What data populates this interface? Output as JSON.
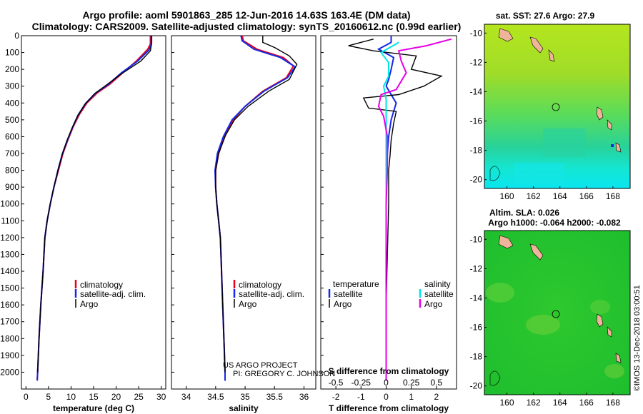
{
  "header": {
    "line1": "Argo profile: aoml 5901863_285 12-Jun-2016 14.63S 163.4E (DM data)",
    "line2": "Climatology: CARS2009. Satellite-adjusted climatology: synTS_20160612.nc (0.99d earlier)"
  },
  "colors": {
    "climatology": "#e6001e",
    "satellite": "#1428e6",
    "argo": "#000000",
    "salinity_satellite": "#00e6e6",
    "salinity_argo": "#e600e6"
  },
  "chart_data": [
    {
      "type": "line",
      "panel": "temperature",
      "xlabel": "temperature (deg C)",
      "ylabel": "",
      "xlim": [
        -1,
        31
      ],
      "ylim": [
        2100,
        0
      ],
      "x_ticks": [
        "0",
        "5",
        "10",
        "15",
        "20",
        "25",
        "30"
      ],
      "y_ticks": [
        "0",
        "100",
        "200",
        "300",
        "400",
        "500",
        "600",
        "700",
        "800",
        "900",
        "1000",
        "1100",
        "1200",
        "1300",
        "1400",
        "1500",
        "1600",
        "1700",
        "1800",
        "1900",
        "2000"
      ],
      "legend": [
        "climatology",
        "satellite-adj. clim.",
        "Argo"
      ],
      "series": [
        {
          "name": "climatology",
          "color": "#e6001e",
          "points": [
            [
              27.6,
              0
            ],
            [
              27.6,
              50
            ],
            [
              27.0,
              80
            ],
            [
              24.5,
              150
            ],
            [
              21.5,
              220
            ],
            [
              18.5,
              290
            ],
            [
              15.8,
              340
            ],
            [
              13.5,
              400
            ],
            [
              11.8,
              470
            ],
            [
              10.5,
              540
            ],
            [
              9.3,
              620
            ],
            [
              8.2,
              700
            ],
            [
              7.2,
              800
            ],
            [
              6.2,
              900
            ],
            [
              5.4,
              1000
            ],
            [
              4.7,
              1100
            ],
            [
              4.2,
              1200
            ],
            [
              3.8,
              1400
            ],
            [
              3.3,
              1600
            ],
            [
              2.9,
              1800
            ],
            [
              2.6,
              2000
            ],
            [
              2.5,
              2050
            ]
          ]
        },
        {
          "name": "satellite-adj. clim.",
          "color": "#1428e6",
          "points": [
            [
              27.8,
              0
            ],
            [
              27.8,
              50
            ],
            [
              27.3,
              85
            ],
            [
              24.8,
              150
            ],
            [
              21.2,
              220
            ],
            [
              18.2,
              290
            ],
            [
              15.5,
              340
            ],
            [
              13.3,
              400
            ],
            [
              11.6,
              470
            ],
            [
              10.4,
              540
            ],
            [
              9.2,
              620
            ],
            [
              8.1,
              700
            ],
            [
              7.1,
              800
            ],
            [
              6.2,
              900
            ],
            [
              5.4,
              1000
            ],
            [
              4.7,
              1100
            ],
            [
              4.2,
              1200
            ],
            [
              3.8,
              1400
            ],
            [
              3.3,
              1600
            ],
            [
              2.9,
              1800
            ],
            [
              2.6,
              2000
            ],
            [
              2.5,
              2050
            ]
          ]
        },
        {
          "name": "Argo",
          "color": "#000000",
          "points": [
            [
              27.9,
              0
            ],
            [
              27.9,
              40
            ],
            [
              27.6,
              90
            ],
            [
              25.5,
              150
            ],
            [
              21.0,
              230
            ],
            [
              17.5,
              300
            ],
            [
              15.2,
              345
            ],
            [
              13.0,
              410
            ],
            [
              11.4,
              480
            ],
            [
              10.2,
              550
            ],
            [
              9.0,
              630
            ],
            [
              8.0,
              710
            ],
            [
              7.0,
              810
            ],
            [
              6.1,
              910
            ],
            [
              5.3,
              1010
            ],
            [
              4.7,
              1100
            ],
            [
              4.2,
              1200
            ],
            [
              3.8,
              1400
            ],
            [
              3.3,
              1600
            ],
            [
              2.9,
              1800
            ],
            [
              2.6,
              2000
            ]
          ]
        }
      ]
    },
    {
      "type": "line",
      "panel": "salinity",
      "xlabel": "salinity",
      "ylabel": "",
      "xlim": [
        33.75,
        36.2
      ],
      "ylim": [
        2100,
        0
      ],
      "x_ticks": [
        "34",
        "34.5",
        "35",
        "35.5",
        "36"
      ],
      "legend": [
        "climatology",
        "satellite-adj. clim.",
        "Argo"
      ],
      "series": [
        {
          "name": "climatology",
          "color": "#e6001e",
          "points": [
            [
              34.95,
              0
            ],
            [
              34.97,
              30
            ],
            [
              35.2,
              80
            ],
            [
              35.65,
              130
            ],
            [
              35.82,
              180
            ],
            [
              35.7,
              250
            ],
            [
              35.3,
              330
            ],
            [
              35.0,
              420
            ],
            [
              34.8,
              500
            ],
            [
              34.65,
              600
            ],
            [
              34.55,
              700
            ],
            [
              34.5,
              800
            ],
            [
              34.5,
              900
            ],
            [
              34.52,
              1000
            ],
            [
              34.55,
              1100
            ],
            [
              34.58,
              1200
            ],
            [
              34.6,
              1400
            ],
            [
              34.62,
              1600
            ],
            [
              34.64,
              1800
            ],
            [
              34.66,
              2000
            ],
            [
              34.66,
              2050
            ]
          ]
        },
        {
          "name": "satellite-adj. clim.",
          "color": "#1428e6",
          "points": [
            [
              34.93,
              0
            ],
            [
              34.95,
              30
            ],
            [
              35.15,
              80
            ],
            [
              35.6,
              130
            ],
            [
              35.85,
              185
            ],
            [
              35.72,
              250
            ],
            [
              35.32,
              330
            ],
            [
              35.0,
              420
            ],
            [
              34.78,
              500
            ],
            [
              34.63,
              600
            ],
            [
              34.53,
              700
            ],
            [
              34.49,
              800
            ],
            [
              34.5,
              900
            ],
            [
              34.52,
              1000
            ],
            [
              34.55,
              1100
            ],
            [
              34.58,
              1200
            ],
            [
              34.6,
              1400
            ],
            [
              34.62,
              1600
            ],
            [
              34.64,
              1800
            ],
            [
              34.66,
              2000
            ],
            [
              34.66,
              2050
            ]
          ]
        },
        {
          "name": "Argo",
          "color": "#000000",
          "points": [
            [
              35.3,
              0
            ],
            [
              35.3,
              40
            ],
            [
              35.5,
              70
            ],
            [
              35.75,
              120
            ],
            [
              35.88,
              170
            ],
            [
              35.75,
              260
            ],
            [
              35.4,
              330
            ],
            [
              35.05,
              420
            ],
            [
              34.82,
              500
            ],
            [
              34.67,
              590
            ],
            [
              34.55,
              700
            ],
            [
              34.5,
              800
            ],
            [
              34.5,
              900
            ],
            [
              34.52,
              1000
            ],
            [
              34.55,
              1100
            ],
            [
              34.58,
              1200
            ],
            [
              34.6,
              1400
            ],
            [
              34.62,
              1600
            ],
            [
              34.64,
              1800
            ],
            [
              34.66,
              2000
            ]
          ]
        }
      ]
    },
    {
      "type": "line",
      "panel": "difference",
      "xlabel": "T difference from climatology",
      "xlabel_top": "S difference from climatology",
      "ylabel": "",
      "xlim": [
        -2.6,
        2.8
      ],
      "ylim": [
        2100,
        0
      ],
      "x_ticks_T": [
        "-2",
        "-1",
        "0",
        "1",
        "2"
      ],
      "x_ticks_S": [
        "-0.5",
        "-0.25",
        "0",
        "0.25",
        "0.5"
      ],
      "legend_left_title": "temperature",
      "legend_right_title": "salinity",
      "legend": [
        "satellite",
        "Argo",
        "satellite",
        "Argo"
      ],
      "series": [
        {
          "name": "satellite",
          "color": "#1428e6",
          "points": [
            [
              0.2,
              0
            ],
            [
              0.2,
              40
            ],
            [
              -0.3,
              80
            ],
            [
              0.3,
              130
            ],
            [
              0.2,
              200
            ],
            [
              0.1,
              260
            ],
            [
              0.0,
              300
            ],
            [
              0.2,
              350
            ],
            [
              0.4,
              400
            ],
            [
              0.3,
              450
            ],
            [
              0.2,
              500
            ],
            [
              0.1,
              600
            ],
            [
              0.05,
              700
            ],
            [
              0.0,
              900
            ],
            [
              0.0,
              1200
            ],
            [
              0.0,
              1600
            ],
            [
              0.0,
              2050
            ]
          ]
        },
        {
          "name": "Argo",
          "color": "#000000",
          "points": [
            [
              -0.5,
              20
            ],
            [
              -1.5,
              60
            ],
            [
              -0.5,
              90
            ],
            [
              1.2,
              120
            ],
            [
              1.0,
              200
            ],
            [
              2.2,
              240
            ],
            [
              1.5,
              300
            ],
            [
              0.5,
              350
            ],
            [
              -0.9,
              370
            ],
            [
              -0.7,
              430
            ],
            [
              0.4,
              450
            ],
            [
              0.3,
              520
            ],
            [
              0.2,
              620
            ],
            [
              0.15,
              720
            ],
            [
              0.1,
              800
            ],
            [
              0.1,
              1000
            ],
            [
              0.05,
              1300
            ],
            [
              0.0,
              1600
            ],
            [
              0.0,
              1800
            ],
            [
              0.0,
              2000
            ]
          ]
        },
        {
          "name": "satellite",
          "color": "#00e6e6",
          "points": [
            [
              0.5,
              40
            ],
            [
              -0.2,
              100
            ],
            [
              0.1,
              160
            ],
            [
              0.1,
              240
            ],
            [
              -0.1,
              300
            ],
            [
              0.0,
              380
            ],
            [
              0.0,
              500
            ],
            [
              0.0,
              700
            ],
            [
              0.0,
              1000
            ],
            [
              0.0,
              1400
            ],
            [
              0.0,
              1800
            ],
            [
              0.0,
              2050
            ]
          ]
        },
        {
          "name": "Argo",
          "color": "#e600e6",
          "points": [
            [
              2.6,
              20
            ],
            [
              1.6,
              60
            ],
            [
              0.5,
              90
            ],
            [
              0.6,
              150
            ],
            [
              0.8,
              220
            ],
            [
              0.4,
              320
            ],
            [
              -0.2,
              350
            ],
            [
              -0.3,
              420
            ],
            [
              -0.1,
              480
            ],
            [
              0.05,
              600
            ],
            [
              0.05,
              800
            ],
            [
              0.0,
              1000
            ],
            [
              0.0,
              1400
            ],
            [
              0.0,
              1800
            ],
            [
              0.0,
              2050
            ]
          ]
        }
      ]
    }
  ],
  "annotations": {
    "project": "US ARGO PROJECT",
    "pi": "PI: GREGORY C. JOHNSON"
  },
  "maps": {
    "sst": {
      "title": "sat. SST: 27.6 Argo: 27.9",
      "x_ticks": [
        "160",
        "162",
        "164",
        "166",
        "168"
      ],
      "y_ticks": [
        "-10",
        "-12",
        "-14",
        "-16",
        "-18",
        "-20"
      ]
    },
    "sla": {
      "title1": "Altim. SLA: 0.026",
      "title2": "Argo h1000: -0.064 h2000: -0.082",
      "x_ticks": [
        "160",
        "162",
        "164",
        "166",
        "168"
      ],
      "y_ticks": [
        "-10",
        "-12",
        "-14",
        "-16",
        "-18",
        "-20"
      ]
    },
    "stamp": "©IMOS 13-Dec-2018 03:00:51"
  }
}
